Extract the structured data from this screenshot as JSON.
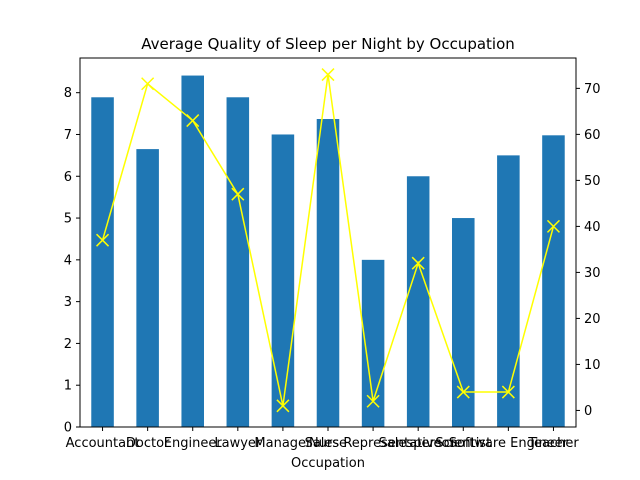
{
  "chart_data": {
    "type": "bar",
    "title": "Average Quality of Sleep per Night by Occupation",
    "xlabel": "Occupation",
    "ylabel": "",
    "categories": [
      "Accountant",
      "Doctor",
      "Engineer",
      "Lawyer",
      "Manager",
      "Nurse",
      "Sales Representative",
      "Salesperson",
      "Scientist",
      "Software Engineer",
      "Teacher"
    ],
    "series": [
      {
        "type": "bar",
        "axis": "left",
        "color": "#1f77b4",
        "values": [
          7.89,
          6.65,
          8.41,
          7.89,
          7.0,
          7.37,
          4.0,
          6.0,
          5.0,
          6.5,
          6.98
        ]
      },
      {
        "type": "line",
        "axis": "right",
        "color": "#ffff00",
        "marker": "x",
        "values": [
          37,
          71,
          63,
          47,
          1,
          73,
          2,
          32,
          4,
          4,
          40
        ]
      }
    ],
    "ylim_left": [
      0,
      8.83
    ],
    "yticks_left": [
      0,
      1,
      2,
      3,
      4,
      5,
      6,
      7,
      8
    ],
    "ylim_right": [
      -3.6,
      76.6
    ],
    "yticks_right": [
      0,
      10,
      20,
      30,
      40,
      50,
      60,
      70
    ],
    "grid": false
  }
}
